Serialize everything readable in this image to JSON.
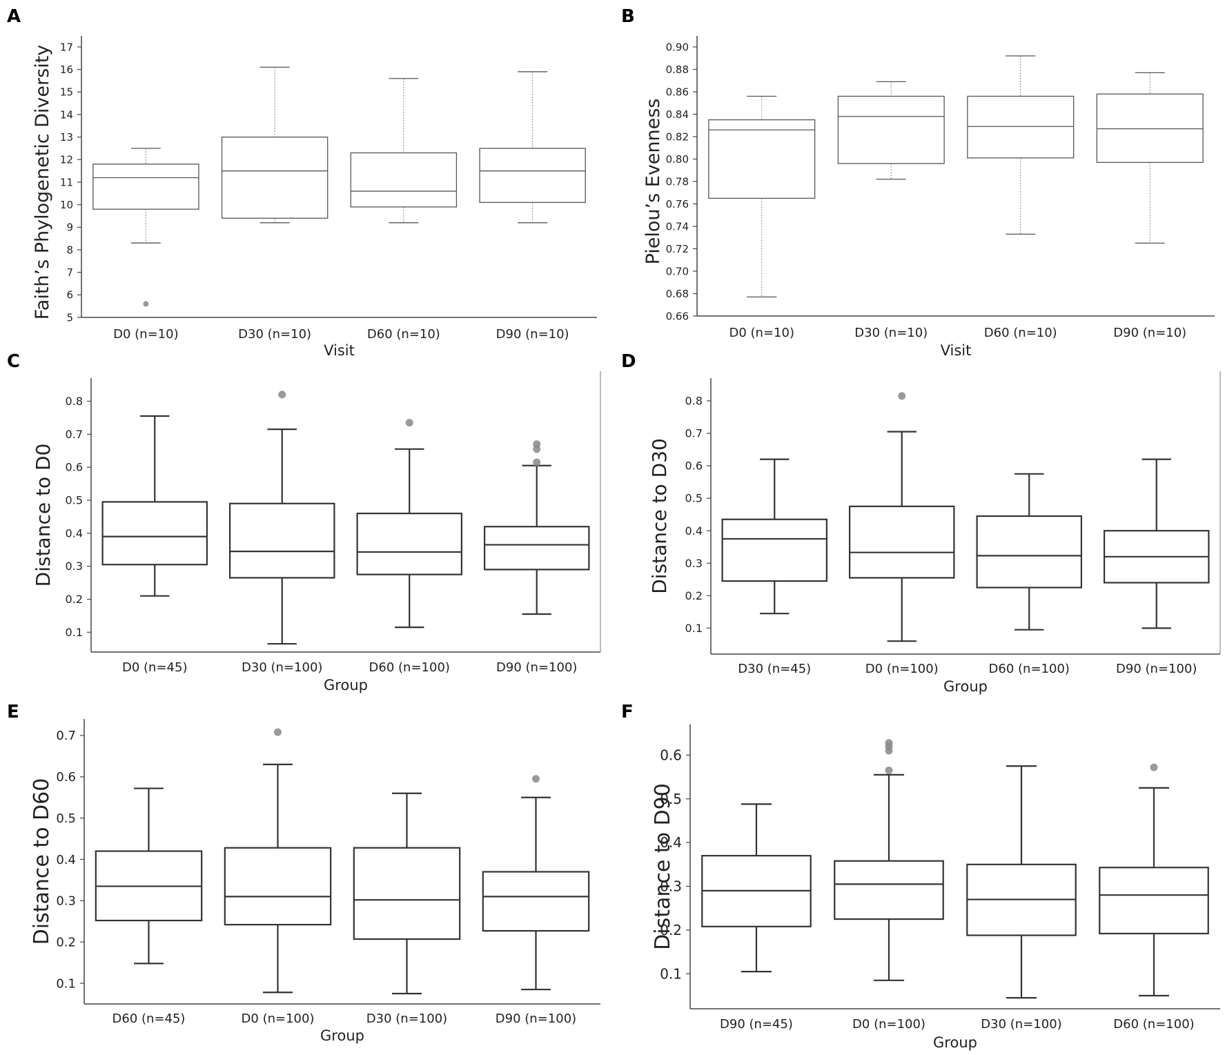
{
  "chart_data": [
    {
      "panel": "A",
      "type": "box",
      "ylabel": "Faith’s Phylogenetic Diversity",
      "xlabel": "Visit",
      "ylim": [
        5,
        17
      ],
      "yticks": [
        "5",
        "6",
        "7",
        "8",
        "9",
        "10",
        "11",
        "12",
        "13",
        "14",
        "15",
        "16",
        "17"
      ],
      "categories": [
        "D0 (n=10)",
        "D30 (n=10)",
        "D60 (n=10)",
        "D90 (n=10)"
      ],
      "boxes": [
        {
          "min": 8.3,
          "q1": 9.8,
          "median": 11.2,
          "q3": 11.8,
          "max": 12.5,
          "outliers": [
            5.6
          ]
        },
        {
          "min": 9.2,
          "q1": 9.4,
          "median": 11.5,
          "q3": 13.0,
          "max": 16.1,
          "outliers": []
        },
        {
          "min": 9.2,
          "q1": 9.9,
          "median": 10.6,
          "q3": 12.3,
          "max": 15.6,
          "outliers": []
        },
        {
          "min": 9.2,
          "q1": 10.1,
          "median": 11.5,
          "q3": 12.5,
          "max": 15.9,
          "outliers": []
        }
      ]
    },
    {
      "panel": "B",
      "type": "box",
      "ylabel": "Pielou’s Evenness",
      "xlabel": "Visit",
      "ylim": [
        0.66,
        0.9
      ],
      "yticks": [
        "0.66",
        "0.68",
        "0.70",
        "0.72",
        "0.74",
        "0.76",
        "0.78",
        "0.80",
        "0.82",
        "0.84",
        "0.86",
        "0.88",
        "0.90"
      ],
      "categories": [
        "D0 (n=10)",
        "D30 (n=10)",
        "D60 (n=10)",
        "D90 (n=10)"
      ],
      "boxes": [
        {
          "min": 0.677,
          "q1": 0.765,
          "median": 0.826,
          "q3": 0.835,
          "max": 0.856,
          "outliers": []
        },
        {
          "min": 0.782,
          "q1": 0.796,
          "median": 0.838,
          "q3": 0.856,
          "max": 0.869,
          "outliers": []
        },
        {
          "min": 0.733,
          "q1": 0.801,
          "median": 0.829,
          "q3": 0.856,
          "max": 0.892,
          "outliers": []
        },
        {
          "min": 0.725,
          "q1": 0.797,
          "median": 0.827,
          "q3": 0.858,
          "max": 0.877,
          "outliers": []
        }
      ]
    },
    {
      "panel": "C",
      "type": "box",
      "ylabel": "Distance to D0",
      "xlabel": "Group",
      "ylim": [
        0.04,
        0.87
      ],
      "yticks": [
        "0.1",
        "0.2",
        "0.3",
        "0.4",
        "0.5",
        "0.6",
        "0.7",
        "0.8"
      ],
      "categories": [
        "D0 (n=45)",
        "D30 (n=100)",
        "D60 (n=100)",
        "D90 (n=100)"
      ],
      "boxes": [
        {
          "min": 0.21,
          "q1": 0.305,
          "median": 0.39,
          "q3": 0.495,
          "max": 0.755,
          "outliers": []
        },
        {
          "min": 0.065,
          "q1": 0.265,
          "median": 0.345,
          "q3": 0.49,
          "max": 0.715,
          "outliers": [
            0.82
          ]
        },
        {
          "min": 0.115,
          "q1": 0.275,
          "median": 0.343,
          "q3": 0.46,
          "max": 0.655,
          "outliers": [
            0.735
          ]
        },
        {
          "min": 0.155,
          "q1": 0.29,
          "median": 0.365,
          "q3": 0.42,
          "max": 0.605,
          "outliers": [
            0.615,
            0.655,
            0.67
          ]
        }
      ]
    },
    {
      "panel": "D",
      "type": "box",
      "ylabel": "Distance to D30",
      "xlabel": "Group",
      "ylim": [
        0.02,
        0.87
      ],
      "yticks": [
        "0.1",
        "0.2",
        "0.3",
        "0.4",
        "0.5",
        "0.6",
        "0.7",
        "0.8"
      ],
      "categories": [
        "D30 (n=45)",
        "D0 (n=100)",
        "D60 (n=100)",
        "D90 (n=100)"
      ],
      "boxes": [
        {
          "min": 0.145,
          "q1": 0.245,
          "median": 0.375,
          "q3": 0.435,
          "max": 0.62,
          "outliers": []
        },
        {
          "min": 0.06,
          "q1": 0.255,
          "median": 0.333,
          "q3": 0.475,
          "max": 0.705,
          "outliers": [
            0.815
          ]
        },
        {
          "min": 0.095,
          "q1": 0.225,
          "median": 0.323,
          "q3": 0.445,
          "max": 0.575,
          "outliers": []
        },
        {
          "min": 0.1,
          "q1": 0.24,
          "median": 0.32,
          "q3": 0.4,
          "max": 0.62,
          "outliers": []
        }
      ]
    },
    {
      "panel": "E",
      "type": "box",
      "ylabel": "Distance to D60",
      "xlabel": "Group",
      "ylim": [
        0.05,
        0.74
      ],
      "yticks": [
        "0.1",
        "0.2",
        "0.3",
        "0.4",
        "0.5",
        "0.6",
        "0.7"
      ],
      "categories": [
        "D60 (n=45)",
        "D0 (n=100)",
        "D30 (n=100)",
        "D90 (n=100)"
      ],
      "boxes": [
        {
          "min": 0.148,
          "q1": 0.252,
          "median": 0.335,
          "q3": 0.42,
          "max": 0.572,
          "outliers": []
        },
        {
          "min": 0.078,
          "q1": 0.242,
          "median": 0.31,
          "q3": 0.428,
          "max": 0.63,
          "outliers": [
            0.708
          ]
        },
        {
          "min": 0.075,
          "q1": 0.207,
          "median": 0.302,
          "q3": 0.428,
          "max": 0.56,
          "outliers": []
        },
        {
          "min": 0.085,
          "q1": 0.227,
          "median": 0.31,
          "q3": 0.37,
          "max": 0.55,
          "outliers": [
            0.595
          ]
        }
      ]
    },
    {
      "panel": "F",
      "type": "box",
      "ylabel": "Distance to D90",
      "xlabel": "Group",
      "ylim": [
        0.02,
        0.67
      ],
      "yticks": [
        "0.1",
        "0.2",
        "0.3",
        "0.4",
        "0.5",
        "0.6"
      ],
      "categories": [
        "D90 (n=45)",
        "D0 (n=100)",
        "D30 (n=100)",
        "D60 (n=100)"
      ],
      "boxes": [
        {
          "min": 0.105,
          "q1": 0.208,
          "median": 0.29,
          "q3": 0.37,
          "max": 0.488,
          "outliers": []
        },
        {
          "min": 0.085,
          "q1": 0.225,
          "median": 0.305,
          "q3": 0.358,
          "max": 0.555,
          "outliers": [
            0.565,
            0.61,
            0.62,
            0.628
          ]
        },
        {
          "min": 0.045,
          "q1": 0.188,
          "median": 0.27,
          "q3": 0.35,
          "max": 0.575,
          "outliers": []
        },
        {
          "min": 0.05,
          "q1": 0.192,
          "median": 0.28,
          "q3": 0.343,
          "max": 0.525,
          "outliers": [
            0.572
          ]
        }
      ]
    }
  ]
}
